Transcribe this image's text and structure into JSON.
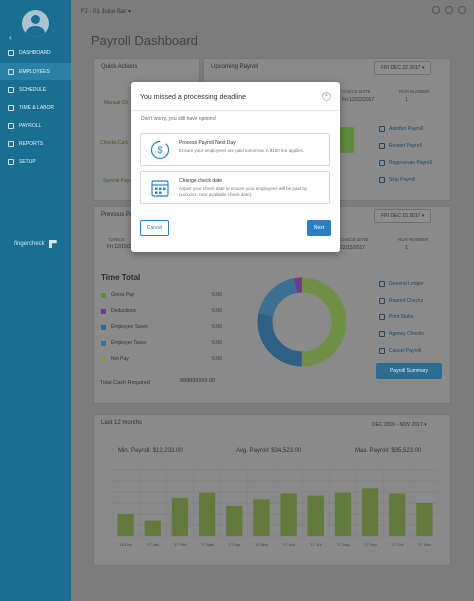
{
  "topbar": {
    "company": "FJ - 01 Juice Bar"
  },
  "sidebar": {
    "items": [
      {
        "label": "DASHBOARD"
      },
      {
        "label": "EMPLOYEES"
      },
      {
        "label": "SCHEDULE"
      },
      {
        "label": "TIME & LABOR"
      },
      {
        "label": "PAYROLL"
      },
      {
        "label": "REPORTS"
      },
      {
        "label": "SETUP"
      }
    ],
    "brand": "fingercheck"
  },
  "page": {
    "title": "Payroll Dashboard"
  },
  "quick_actions": {
    "title": "Quick Actions",
    "items": [
      "Manual Ch",
      "Checks Calc",
      "Special Payr"
    ]
  },
  "upcoming": {
    "title": "Upcoming Payroll",
    "date_pill": "FRI DEC 22 2017",
    "check_date_label": "CHECK DATE",
    "check_date_value": "Fri 12/22/2017",
    "run_number_label": "RUN NUMBER",
    "run_number_value": "1",
    "links": [
      "Autofun Payroll",
      "Restart Payroll",
      "Regenerate Payroll",
      "Skip Payroll"
    ]
  },
  "previous": {
    "title": "Previous Pa",
    "date_pill": "FRI DEC 15 2017",
    "check_label": "CHECK",
    "check_value": "Fri 12/15/20",
    "check_date_label": "CHECK DATE",
    "check_date_value": "12/15/2017",
    "run_number_label": "RUN NUMBER",
    "run_number_value": "1"
  },
  "time_total": {
    "title": "Time Total",
    "rows": [
      {
        "label": "Gross Pay",
        "value": "0.00",
        "color": "#5f8a3b"
      },
      {
        "label": "Deductions",
        "value": "0.00",
        "color": "#6a3f86"
      },
      {
        "label": "Employee Taxes",
        "value": "0.00",
        "color": "#2f6a8a"
      },
      {
        "label": "Employer Taxes",
        "value": "0.00",
        "color": "#3f6f95"
      },
      {
        "label": "Net Pay",
        "value": "0.00",
        "color": "#7b9a45"
      }
    ],
    "total_label": "Total Cash Required",
    "total_value": "999999999.00",
    "donut": [
      {
        "fraction": 0.5,
        "color": "#6f8f45"
      },
      {
        "fraction": 0.28,
        "color": "#2e5f84"
      },
      {
        "fraction": 0.19,
        "color": "#3d6f93"
      },
      {
        "fraction": 0.03,
        "color": "#6a3f86"
      }
    ],
    "links": [
      "General Ledger",
      "Reprint Checks",
      "Print Stubs",
      "Agency Checks",
      "Cancel Payroll"
    ],
    "summary_button": "Payroll Summary"
  },
  "last12": {
    "title": "Last 12 months",
    "range": "DEC 2016 - NOV 2017",
    "min_label": "Min. Payroll: $12,233.00",
    "avg_label": "Avg. Payroll: $34,523.00",
    "max_label": "Max. Payroll: $35,523.00"
  },
  "chart_data": {
    "type": "bar",
    "categories": [
      "'16 Dec",
      "'17 Jan",
      "'17 Feb",
      "'17 Mar",
      "'17 Apr",
      "'17 May",
      "'17 Jun",
      "'17 Jul",
      "'17 Aug",
      "'17 Sep",
      "'17 Oct",
      "'17 Nov"
    ],
    "values": [
      60,
      42,
      104,
      118,
      82,
      100,
      116,
      110,
      118,
      130,
      116,
      90
    ],
    "ylim": [
      0,
      180
    ],
    "bar_color": "#627a3c",
    "grid": true
  },
  "modal": {
    "title": "You missed a processing deadline",
    "subtitle": "Don't worry, you still have options!",
    "option1_title": "Process Payroll Next Day",
    "option1_desc": "Ensure your employees are paid tomorrow. A $150 fee applies.",
    "option2_title": "Change check date",
    "option2_desc": "Adjust your check date to ensure your employees will be paid by (xx/xx/xx; next available check date).",
    "cancel": "Cancel",
    "next": "Next"
  }
}
